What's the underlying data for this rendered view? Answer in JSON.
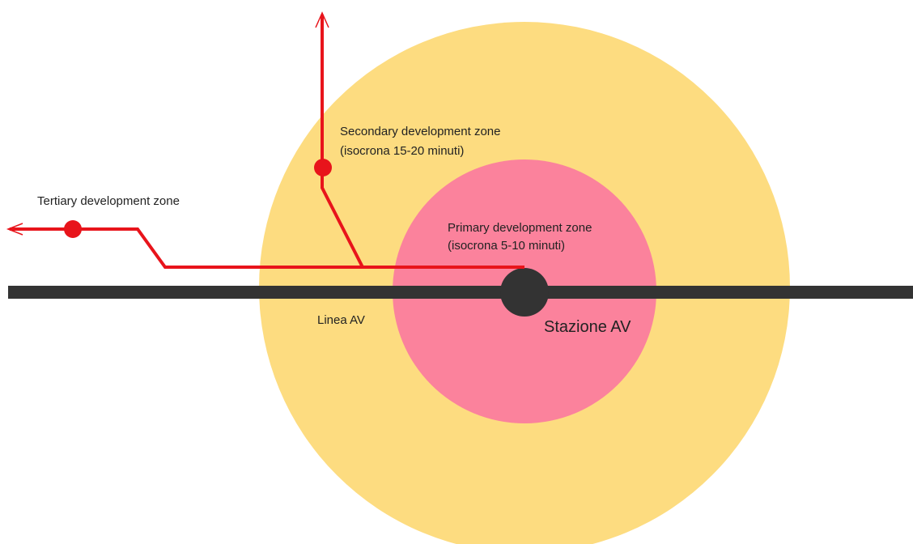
{
  "zones": {
    "secondary": {
      "title": "Secondary development zone",
      "subtitle": "(isocrona 15-20 minuti)"
    },
    "tertiary": {
      "title": "Tertiary development zone"
    },
    "primary": {
      "title": "Primary development zone",
      "subtitle": "(isocrona 5-10 minuti)"
    }
  },
  "line_label": "Linea AV",
  "station_label": "Stazione AV"
}
